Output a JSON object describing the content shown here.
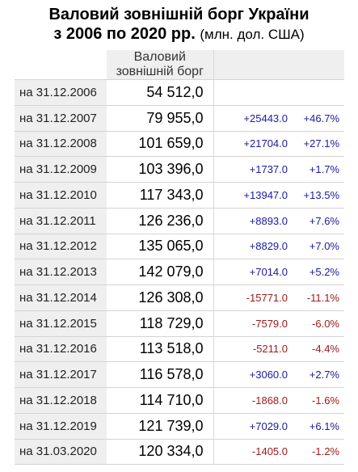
{
  "title": {
    "line1": "Валовий зовнішній борг України",
    "line2_bold": "з 2006 по 2020 рр.",
    "line2_unit": "(млн. дол. США)"
  },
  "table": {
    "header": "Валовий зовнішній борг",
    "rows": [
      {
        "date": "на 31.12.2006",
        "value": "54 512,0",
        "abs": "",
        "pct": "",
        "dir": ""
      },
      {
        "date": "на 31.12.2007",
        "value": "79 955,0",
        "abs": "+25443.0",
        "pct": "+46.7%",
        "dir": "pos"
      },
      {
        "date": "на 31.12.2008",
        "value": "101 659,0",
        "abs": "+21704.0",
        "pct": "+27.1%",
        "dir": "pos"
      },
      {
        "date": "на 31.12.2009",
        "value": "103 396,0",
        "abs": "+1737.0",
        "pct": "+1.7%",
        "dir": "pos"
      },
      {
        "date": "на 31.12.2010",
        "value": "117 343,0",
        "abs": "+13947.0",
        "pct": "+13.5%",
        "dir": "pos"
      },
      {
        "date": "на 31.12.2011",
        "value": "126 236,0",
        "abs": "+8893.0",
        "pct": "+7.6%",
        "dir": "pos"
      },
      {
        "date": "на 31.12.2012",
        "value": "135 065,0",
        "abs": "+8829.0",
        "pct": "+7.0%",
        "dir": "pos"
      },
      {
        "date": "на 31.12.2013",
        "value": "142 079,0",
        "abs": "+7014.0",
        "pct": "+5.2%",
        "dir": "pos"
      },
      {
        "date": "на 31.12.2014",
        "value": "126 308,0",
        "abs": "-15771.0",
        "pct": "-11.1%",
        "dir": "neg"
      },
      {
        "date": "на 31.12.2015",
        "value": "118 729,0",
        "abs": "-7579.0",
        "pct": "-6.0%",
        "dir": "neg"
      },
      {
        "date": "на 31.12.2016",
        "value": "113 518,0",
        "abs": "-5211.0",
        "pct": "-4.4%",
        "dir": "neg"
      },
      {
        "date": "на 31.12.2017",
        "value": "116 578,0",
        "abs": "+3060.0",
        "pct": "+2.7%",
        "dir": "pos"
      },
      {
        "date": "на 31.12.2018",
        "value": "114 710,0",
        "abs": "-1868.0",
        "pct": "-1.6%",
        "dir": "neg"
      },
      {
        "date": "на 31.12.2019",
        "value": "121 739,0",
        "abs": "+7029.0",
        "pct": "+6.1%",
        "dir": "pos"
      },
      {
        "date": "на 31.03.2020",
        "value": "120 334,0",
        "abs": "-1405.0",
        "pct": "-1.2%",
        "dir": "neg"
      }
    ]
  },
  "colors": {
    "positive": "#1a1aa0",
    "negative": "#a01a1a",
    "header_bg": "#efefef"
  }
}
